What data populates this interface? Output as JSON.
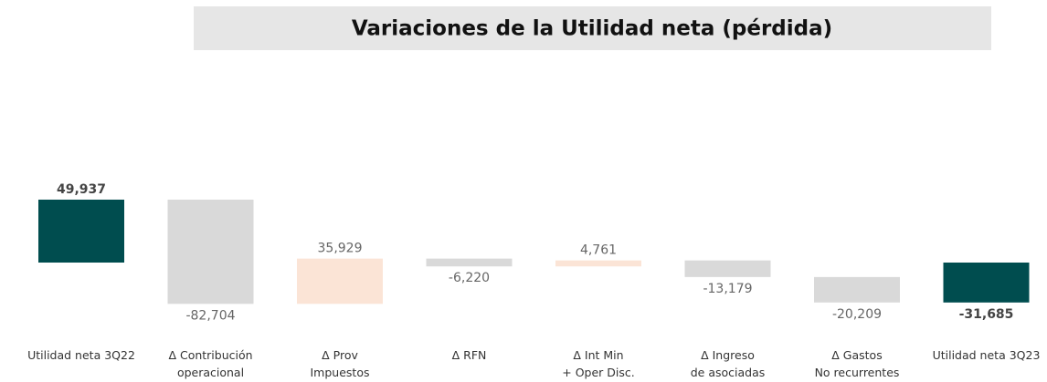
{
  "chart_data": {
    "type": "waterfall",
    "title": "Variaciones de la Utilidad neta (pérdida)",
    "categories": [
      [
        "Utilidad neta 3Q22"
      ],
      [
        "Δ  Contribución",
        "operacional"
      ],
      [
        "Δ Prov",
        "Impuestos"
      ],
      [
        "Δ RFN"
      ],
      [
        "Δ Int Min",
        "+ Oper Disc."
      ],
      [
        "Δ Ingreso",
        "de asociadas"
      ],
      [
        "Δ Gastos",
        "No recurrentes"
      ],
      [
        "Utilidad neta 3Q23"
      ]
    ],
    "values": [
      49937,
      -82704,
      35929,
      -6220,
      4761,
      -13179,
      -20209,
      -31685
    ],
    "value_labels": [
      "49,937",
      "-82,704",
      "35,929",
      "-6,220",
      "4,761",
      "-13,179",
      "-20,209",
      "-31,685"
    ],
    "colors": [
      "#004d4f",
      "#d9d9d9",
      "#fbe4d6",
      "#d9d9d9",
      "#fbe4d6",
      "#d9d9d9",
      "#d9d9d9",
      "#004d4f"
    ]
  }
}
